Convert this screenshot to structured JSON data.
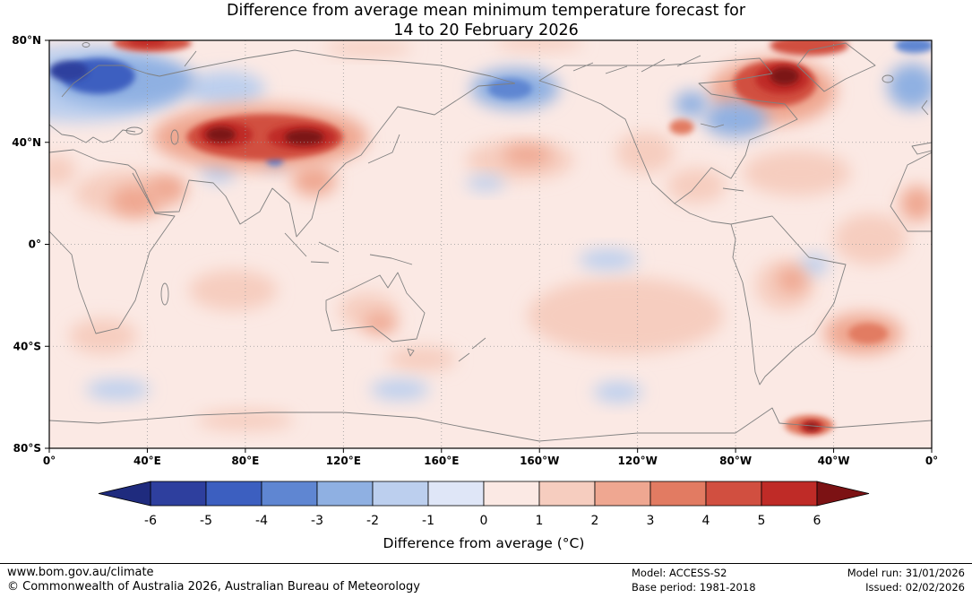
{
  "title": {
    "line1": "Difference from average mean minimum temperature forecast for",
    "line2": "14 to 20 February 2026"
  },
  "chart_data": {
    "type": "heatmap",
    "description": "Global filled-contour map of forecast mean minimum temperature anomaly (°C) relative to 1981-2018, equirectangular projection, longitudes 0°E eastward around to 0°, latitudes 80°N to 80°S.",
    "units": "°C",
    "value_range": [
      -6,
      6
    ],
    "lon_ticks": [
      {
        "lon": 0,
        "label": "0°"
      },
      {
        "lon": 40,
        "label": "40°E"
      },
      {
        "lon": 80,
        "label": "80°E"
      },
      {
        "lon": 120,
        "label": "120°E"
      },
      {
        "lon": 160,
        "label": "160°E"
      },
      {
        "lon": 200,
        "label": "160°W"
      },
      {
        "lon": 240,
        "label": "120°W"
      },
      {
        "lon": 280,
        "label": "80°W"
      },
      {
        "lon": 320,
        "label": "40°W"
      },
      {
        "lon": 360,
        "label": "0°"
      }
    ],
    "lat_ticks": [
      {
        "lat": 80,
        "label": "80°N"
      },
      {
        "lat": 40,
        "label": "40°N"
      },
      {
        "lat": 0,
        "label": "0°"
      },
      {
        "lat": -40,
        "label": "40°S"
      },
      {
        "lat": -80,
        "label": "80°S"
      }
    ],
    "grid_lons": [
      40,
      80,
      120,
      160,
      200,
      240,
      280,
      320
    ],
    "grid_lats": [
      40,
      0,
      -40
    ],
    "colorbar": {
      "label": "Difference from average (°C)",
      "tick_labels": [
        "-6",
        "-5",
        "-4",
        "-3",
        "-2",
        "-1",
        "0",
        "1",
        "2",
        "3",
        "4",
        "5",
        "6"
      ],
      "segment_colors": [
        "#2e3f9e",
        "#3c5fc0",
        "#5f86d2",
        "#8fb0e2",
        "#bccfee",
        "#dfe6f7",
        "#fbe9e4",
        "#f6cdbf",
        "#efa791",
        "#e27b62",
        "#d14f40",
        "#bf2b27"
      ],
      "below_color": "#1f2b7e",
      "above_color": "#7c1214"
    },
    "background_value": 0.5,
    "anomaly_regions": [
      {
        "name": "sahara-north-africa",
        "lat": 20,
        "lon": 32,
        "rlat": 9,
        "rlon": 22,
        "v": 1.5
      },
      {
        "name": "north-africa-west-edge",
        "lat": 29,
        "lon": 3,
        "rlat": 6,
        "rlon": 8,
        "v": 1.5
      },
      {
        "name": "indian-ocean",
        "lat": -18,
        "lon": 75,
        "rlat": 8,
        "rlon": 18,
        "v": 1.5
      },
      {
        "name": "australia-interior",
        "lat": -26,
        "lon": 130,
        "rlat": 7,
        "rlon": 12,
        "v": 1.5
      },
      {
        "name": "tasman-southern-ocean",
        "lat": -45,
        "lon": 152,
        "rlat": 5,
        "rlon": 14,
        "v": 1.5
      },
      {
        "name": "south-pacific-broad",
        "lat": -28,
        "lon": 235,
        "rlat": 15,
        "rlon": 40,
        "v": 1.5
      },
      {
        "name": "north-pacific-warm",
        "lat": 33,
        "lon": 192,
        "rlat": 8,
        "rlon": 22,
        "v": 1.5
      },
      {
        "name": "north-america-west",
        "lat": 36,
        "lon": 243,
        "rlat": 8,
        "rlon": 12,
        "v": 1.5
      },
      {
        "name": "mexico-gulf",
        "lat": 23,
        "lon": 264,
        "rlat": 7,
        "rlon": 12,
        "v": 1.5
      },
      {
        "name": "atlantic-subtropic",
        "lat": 28,
        "lon": 305,
        "rlat": 9,
        "rlon": 22,
        "v": 1.5
      },
      {
        "name": "south-america-central",
        "lat": -16,
        "lon": 300,
        "rlat": 10,
        "rlon": 12,
        "v": 1.5
      },
      {
        "name": "tropical-atlantic",
        "lat": 2,
        "lon": 335,
        "rlat": 10,
        "rlon": 15,
        "v": 1.5
      },
      {
        "name": "south-africa-ocean",
        "lat": -36,
        "lon": 22,
        "rlat": 7,
        "rlon": 14,
        "v": 1.5
      },
      {
        "name": "east-antarctica",
        "lat": -69,
        "lon": 80,
        "rlat": 4,
        "rlon": 20,
        "v": 1.5
      },
      {
        "name": "arctic-siberia-top",
        "lat": 77,
        "lon": 130,
        "rlat": 3,
        "rlon": 18,
        "v": 1.5
      },
      {
        "name": "arctic-alaska-top",
        "lat": 79,
        "lon": 200,
        "rlat": 3,
        "rlon": 18,
        "v": 1.5
      },
      {
        "name": "north-atlantic-europe",
        "lat": 63,
        "lon": 12,
        "rlat": 15,
        "rlon": 42,
        "v": -1.5
      },
      {
        "name": "west-siberia-tail",
        "lat": 61,
        "lon": 72,
        "rlat": 7,
        "rlon": 16,
        "v": -1.5
      },
      {
        "name": "pakistan-nw-india",
        "lat": 29,
        "lon": 69,
        "rlat": 5,
        "rlon": 7,
        "v": -1.5
      },
      {
        "name": "himalaya-ring",
        "lat": 33,
        "lon": 92,
        "rlat": 4,
        "rlon": 6,
        "v": -1.5
      },
      {
        "name": "equatorial-pacific",
        "lat": -6,
        "lon": 228,
        "rlat": 4,
        "rlon": 12,
        "v": -1.5
      },
      {
        "name": "north-pacific-speck",
        "lat": 24,
        "lon": 178,
        "rlat": 3,
        "rlon": 8,
        "v": -1.5
      },
      {
        "name": "brazil-coast",
        "lat": -8,
        "lon": 312,
        "rlat": 4,
        "rlon": 6,
        "v": -1.5
      },
      {
        "name": "southern-ocean-africa",
        "lat": -57,
        "lon": 28,
        "rlat": 4,
        "rlon": 13,
        "v": -1.5
      },
      {
        "name": "southern-ocean-australia",
        "lat": -57,
        "lon": 143,
        "rlat": 4,
        "rlon": 12,
        "v": -1.5
      },
      {
        "name": "southern-ocean-pacific",
        "lat": -58,
        "lon": 232,
        "rlat": 4,
        "rlon": 10,
        "v": -1.5
      },
      {
        "name": "asia-warm-broad",
        "lat": 42,
        "lon": 86,
        "rlat": 13,
        "rlon": 44,
        "v": 2.5
      },
      {
        "name": "canada-warm-broad",
        "lat": 60,
        "lon": 295,
        "rlat": 13,
        "rlon": 26,
        "v": 2.5
      },
      {
        "name": "sudan-red-sea",
        "lat": 17,
        "lon": 35,
        "rlat": 6,
        "rlon": 10,
        "v": 2.5
      },
      {
        "name": "arabia",
        "lat": 22,
        "lon": 48,
        "rlat": 5,
        "rlon": 8,
        "v": 2.5
      },
      {
        "name": "south-china",
        "lat": 25,
        "lon": 108,
        "rlat": 6,
        "rlon": 9,
        "v": 2.5
      },
      {
        "name": "north-pacific-core",
        "lat": 35,
        "lon": 195,
        "rlat": 4,
        "rlon": 10,
        "v": 2.5
      },
      {
        "name": "brazil-core",
        "lat": -14,
        "lon": 303,
        "rlat": 5,
        "rlon": 6,
        "v": 2.5
      },
      {
        "name": "south-atlantic-warm",
        "lat": -35,
        "lon": 332,
        "rlat": 8,
        "rlon": 16,
        "v": 2.5
      },
      {
        "name": "australia-south",
        "lat": -31,
        "lon": 135,
        "rlat": 4,
        "rlon": 7,
        "v": 2.5
      },
      {
        "name": "west-africa-edge",
        "lat": 16,
        "lon": 354,
        "rlat": 7,
        "rlon": 7,
        "v": 2.5
      },
      {
        "name": "europe-russia",
        "lat": 64,
        "lon": 30,
        "rlat": 10,
        "rlon": 30,
        "v": -2.5
      },
      {
        "name": "bering-sea",
        "lat": 61,
        "lon": 190,
        "rlat": 8,
        "rlon": 18,
        "v": -2.5
      },
      {
        "name": "north-atlantic-east-edge",
        "lat": 62,
        "lon": 352,
        "rlat": 9,
        "rlon": 10,
        "v": -2.5
      },
      {
        "name": "great-lakes-quebec",
        "lat": 49,
        "lon": 280,
        "rlat": 7,
        "rlon": 13,
        "v": -2.5
      },
      {
        "name": "hudson-west",
        "lat": 55,
        "lon": 262,
        "rlat": 5,
        "rlon": 7,
        "v": -2.5
      },
      {
        "name": "bering-core",
        "lat": 61,
        "lon": 188,
        "rlat": 4,
        "rlon": 9,
        "v": -3.5
      },
      {
        "name": "arctic-ne-corner",
        "lat": 78,
        "lon": 353,
        "rlat": 3,
        "rlon": 8,
        "v": -3.5
      },
      {
        "name": "himalaya-spot",
        "lat": 33,
        "lon": 92,
        "rlat": 2.2,
        "rlon": 3.5,
        "v": -3.5
      },
      {
        "name": "us-north-spot",
        "lat": 46,
        "lon": 258,
        "rlat": 3,
        "rlon": 5,
        "v": 3.5
      },
      {
        "name": "south-atlantic-core",
        "lat": -35,
        "lon": 334,
        "rlat": 4,
        "rlon": 8,
        "v": 3.5
      },
      {
        "name": "antarctic-peninsula-outer",
        "lat": -71,
        "lon": 310,
        "rlat": 4,
        "rlon": 10,
        "v": 3.5
      },
      {
        "name": "asia-warm-main",
        "lat": 42,
        "lon": 88,
        "rlat": 9,
        "rlon": 32,
        "v": 4.5
      },
      {
        "name": "canada-warm-main",
        "lat": 63,
        "lon": 296,
        "rlat": 9,
        "rlon": 17,
        "v": 4.5
      },
      {
        "name": "greenland-top",
        "lat": 78,
        "lon": 310,
        "rlat": 4,
        "rlon": 16,
        "v": 4.5
      },
      {
        "name": "svalbard-top",
        "lat": 79,
        "lon": 42,
        "rlat": 3.5,
        "rlon": 16,
        "v": 4.5
      },
      {
        "name": "scandinavia-core",
        "lat": 66,
        "lon": 20,
        "rlat": 7,
        "rlon": 15,
        "v": -4.5
      },
      {
        "name": "asia-core-west",
        "lat": 43,
        "lon": 72,
        "rlat": 5,
        "rlon": 11,
        "v": 5.5
      },
      {
        "name": "asia-core-east",
        "lat": 42,
        "lon": 103,
        "rlat": 5,
        "rlon": 14,
        "v": 5.5
      },
      {
        "name": "canada-core",
        "lat": 65,
        "lon": 299,
        "rlat": 6,
        "rlon": 11,
        "v": 5.5
      },
      {
        "name": "svalbard-core",
        "lat": 79.5,
        "lon": 40,
        "rlat": 2,
        "rlon": 8,
        "v": 5.5
      },
      {
        "name": "norwegian-sea-core",
        "lat": 68,
        "lon": 8,
        "rlat": 4,
        "rlon": 8,
        "v": -5.5
      },
      {
        "name": "antarctic-peninsula-core",
        "lat": -71.5,
        "lon": 311,
        "rlat": 2.5,
        "rlon": 5,
        "v": 5.5
      },
      {
        "name": "asia-inner-west",
        "lat": 43,
        "lon": 70,
        "rlat": 3,
        "rlon": 6,
        "v": 6.5
      },
      {
        "name": "asia-inner-east",
        "lat": 42,
        "lon": 104,
        "rlat": 3,
        "rlon": 8,
        "v": 6.5
      },
      {
        "name": "canada-inner",
        "lat": 66,
        "lon": 300,
        "rlat": 3.5,
        "rlon": 6,
        "v": 6.5
      },
      {
        "name": "antarctic-peninsula-inner",
        "lat": -71.5,
        "lon": 311,
        "rlat": 1.3,
        "rlon": 2.5,
        "v": 6.5
      }
    ]
  },
  "footer": {
    "website": "www.bom.gov.au/climate",
    "copyright": "© Commonwealth of Australia 2026, Australian Bureau of Meteorology",
    "model_label": "Model: ACCESS-S2",
    "base_period_label": "Base period: 1981-2018",
    "model_run_label": "Model run: 31/01/2026",
    "issued_label": "Issued: 02/02/2026"
  }
}
